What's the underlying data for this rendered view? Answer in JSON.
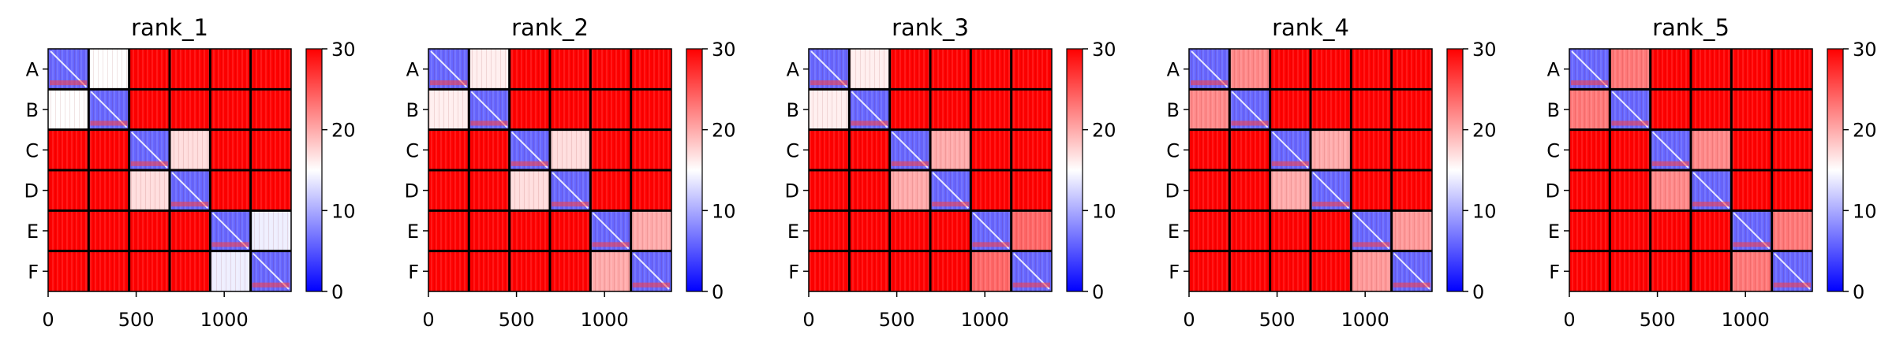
{
  "chart_data": {
    "type": "heatmap",
    "block_labels": [
      "A",
      "B",
      "C",
      "D",
      "E",
      "F"
    ],
    "x_ticks": [
      0,
      500,
      1000
    ],
    "x_range": [
      0,
      1380
    ],
    "colorbar": {
      "min": 0,
      "max": 30,
      "ticks": [
        0,
        10,
        20,
        30
      ],
      "colors": [
        "#0000ff",
        "#ffffff",
        "#ff0000"
      ]
    },
    "panels": [
      {
        "title": "rank_1",
        "block_values": [
          [
            6,
            15,
            30,
            30,
            30,
            30
          ],
          [
            15,
            6,
            30,
            30,
            30,
            30
          ],
          [
            30,
            30,
            6,
            17,
            30,
            30
          ],
          [
            30,
            30,
            17,
            6,
            30,
            30
          ],
          [
            30,
            30,
            30,
            30,
            6,
            14
          ],
          [
            30,
            30,
            30,
            30,
            14,
            6
          ]
        ]
      },
      {
        "title": "rank_2",
        "block_values": [
          [
            6,
            16,
            30,
            30,
            30,
            30
          ],
          [
            16,
            6,
            30,
            30,
            30,
            30
          ],
          [
            30,
            30,
            6,
            17,
            30,
            30
          ],
          [
            30,
            30,
            17,
            6,
            30,
            30
          ],
          [
            30,
            30,
            30,
            30,
            6,
            20
          ],
          [
            30,
            30,
            30,
            30,
            20,
            6
          ]
        ]
      },
      {
        "title": "rank_3",
        "block_values": [
          [
            6,
            16,
            30,
            30,
            30,
            30
          ],
          [
            16,
            6,
            30,
            30,
            30,
            30
          ],
          [
            30,
            30,
            6,
            20,
            30,
            30
          ],
          [
            30,
            30,
            20,
            6,
            30,
            30
          ],
          [
            30,
            30,
            30,
            30,
            6,
            24
          ],
          [
            30,
            30,
            30,
            30,
            24,
            6
          ]
        ]
      },
      {
        "title": "rank_4",
        "block_values": [
          [
            6,
            22,
            30,
            30,
            30,
            30
          ],
          [
            22,
            6,
            30,
            30,
            30,
            30
          ],
          [
            30,
            30,
            6,
            20,
            30,
            30
          ],
          [
            30,
            30,
            20,
            6,
            30,
            30
          ],
          [
            30,
            30,
            30,
            30,
            6,
            21
          ],
          [
            30,
            30,
            30,
            30,
            21,
            6
          ]
        ]
      },
      {
        "title": "rank_5",
        "block_values": [
          [
            6,
            23,
            30,
            30,
            30,
            30
          ],
          [
            23,
            6,
            30,
            30,
            30,
            30
          ],
          [
            30,
            30,
            6,
            22,
            30,
            30
          ],
          [
            30,
            30,
            22,
            6,
            30,
            30
          ],
          [
            30,
            30,
            30,
            30,
            6,
            23
          ],
          [
            30,
            30,
            30,
            30,
            23,
            6
          ]
        ]
      }
    ]
  }
}
